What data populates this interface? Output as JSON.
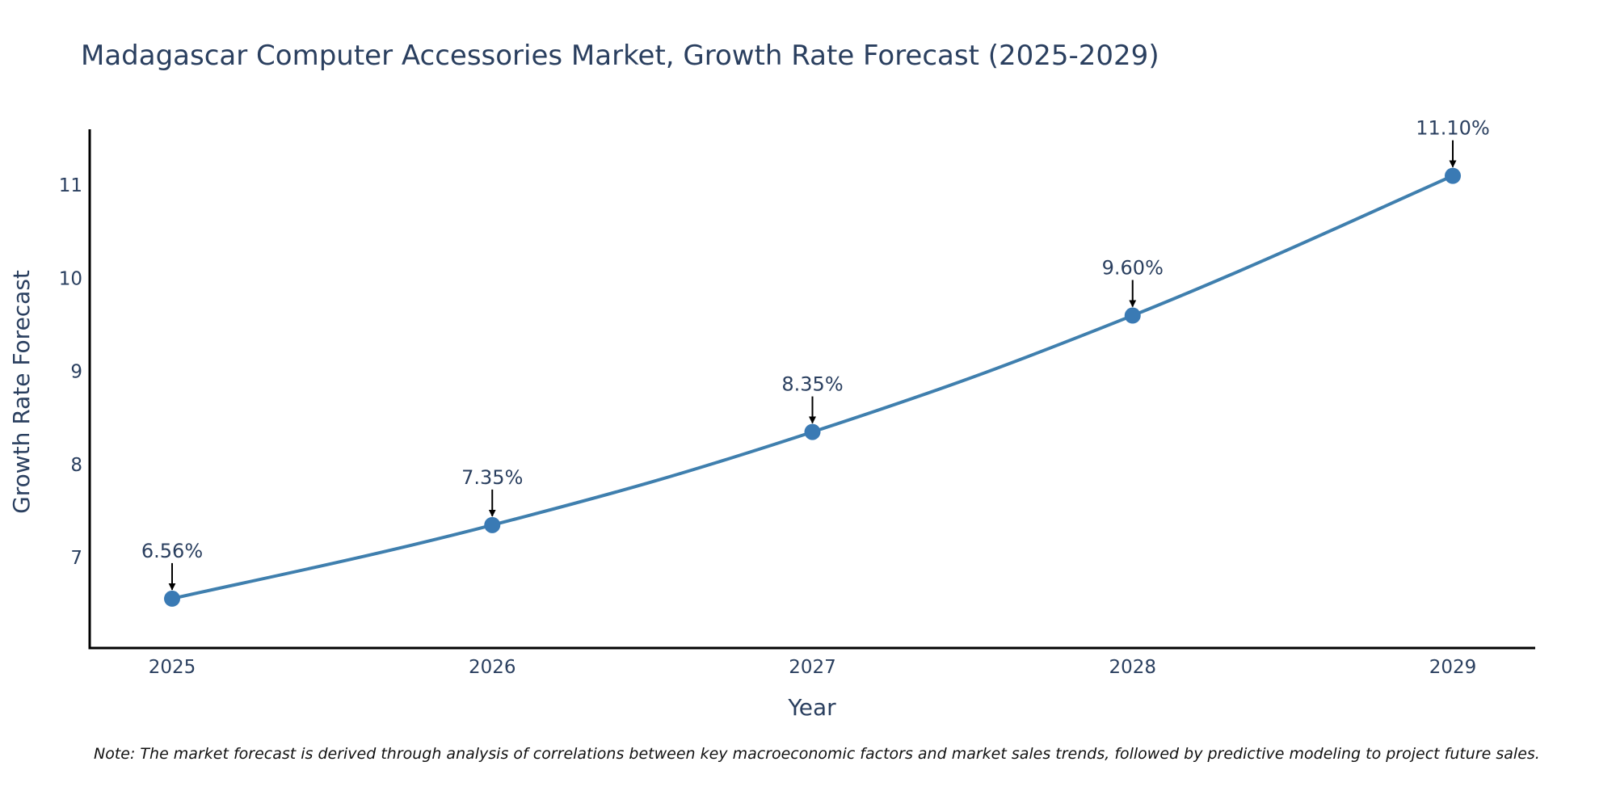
{
  "colors": {
    "line": "#3f7fae",
    "marker": "#3a7ab4",
    "axis": "#000000",
    "text": "#2a3f5f",
    "arrow": "#000000"
  },
  "chart_data": {
    "type": "line",
    "title": "Madagascar Computer Accessories Market, Growth Rate Forecast (2025-2029)",
    "xlabel": "Year",
    "ylabel": "Growth Rate Forecast",
    "x": [
      "2025",
      "2026",
      "2027",
      "2028",
      "2029"
    ],
    "series": [
      {
        "name": "Growth Rate Forecast",
        "values": [
          6.56,
          7.35,
          8.35,
          9.6,
          11.1
        ]
      }
    ],
    "data_labels": [
      "6.56%",
      "7.35%",
      "8.35%",
      "9.60%",
      "11.10%"
    ],
    "yticks": [
      7,
      8,
      9,
      10,
      11
    ],
    "ylim": [
      6.03,
      11.6
    ],
    "grid": false,
    "legend": "none"
  },
  "note": "Note: The market forecast is derived through analysis of correlations between key macroeconomic factors and market sales trends, followed by predictive modeling to project future sales."
}
